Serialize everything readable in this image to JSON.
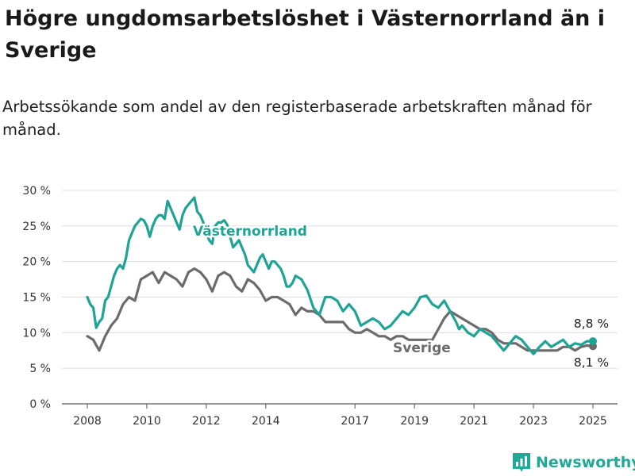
{
  "header": {
    "title": "Högre ungdomsarbetslöshet i Västernorrland än i Sverige",
    "subtitle": "Arbetssökande som andel av den registerbaserade arbetskraften månad för månad."
  },
  "brand": {
    "name": "Newsworthy",
    "icon": "newsworthy-logo-icon"
  },
  "chart_data": {
    "type": "line",
    "y_ticks": [
      "0 %",
      "5 %",
      "10 %",
      "15 %",
      "20 %",
      "25 %",
      "30 %"
    ],
    "x_ticks": [
      "2008",
      "2010",
      "2012",
      "2014",
      "2017",
      "2019",
      "2021",
      "2023",
      "2025"
    ],
    "ylim": [
      0,
      30
    ],
    "grid": true,
    "legend": "inline labels",
    "series": [
      {
        "name": "Västernorrland",
        "color": "#1fa395",
        "end_label": "8,8 %",
        "x": [
          2008.0,
          2008.1,
          2008.2,
          2008.3,
          2008.4,
          2008.5,
          2008.6,
          2008.7,
          2008.8,
          2008.9,
          2009.0,
          2009.1,
          2009.2,
          2009.3,
          2009.4,
          2009.5,
          2009.6,
          2009.7,
          2009.8,
          2009.9,
          2010.0,
          2010.1,
          2010.2,
          2010.3,
          2010.4,
          2010.5,
          2010.6,
          2010.7,
          2010.8,
          2010.9,
          2011.0,
          2011.1,
          2011.2,
          2011.3,
          2011.4,
          2011.5,
          2011.6,
          2011.7,
          2011.8,
          2011.9,
          2012.0,
          2012.1,
          2012.2,
          2012.3,
          2012.4,
          2012.5,
          2012.6,
          2012.7,
          2012.8,
          2012.9,
          2013.0,
          2013.1,
          2013.2,
          2013.3,
          2013.4,
          2013.5,
          2013.6,
          2013.7,
          2013.8,
          2013.9,
          2014.0,
          2014.1,
          2014.2,
          2014.3,
          2014.4,
          2014.5,
          2014.6,
          2014.7,
          2014.8,
          2014.9,
          2015.0,
          2015.2,
          2015.4,
          2015.6,
          2015.8,
          2016.0,
          2016.2,
          2016.4,
          2016.6,
          2016.8,
          2017.0,
          2017.2,
          2017.4,
          2017.6,
          2017.8,
          2018.0,
          2018.2,
          2018.4,
          2018.6,
          2018.8,
          2019.0,
          2019.2,
          2019.4,
          2019.6,
          2019.8,
          2020.0,
          2020.2,
          2020.4,
          2020.5,
          2020.6,
          2020.8,
          2021.0,
          2021.2,
          2021.4,
          2021.6,
          2021.8,
          2022.0,
          2022.2,
          2022.4,
          2022.6,
          2022.8,
          2023.0,
          2023.2,
          2023.4,
          2023.6,
          2023.8,
          2024.0,
          2024.2,
          2024.4,
          2024.6,
          2024.8,
          2025.0
        ],
        "values": [
          15.0,
          14.0,
          13.5,
          10.7,
          11.5,
          12.0,
          14.5,
          15.0,
          16.5,
          18.0,
          19.0,
          19.5,
          19.0,
          20.5,
          23.0,
          24.0,
          25.0,
          25.5,
          26.0,
          25.8,
          25.0,
          23.5,
          25.0,
          26.0,
          26.5,
          26.5,
          26.0,
          28.5,
          27.5,
          26.5,
          25.5,
          24.5,
          26.5,
          27.5,
          28.0,
          28.5,
          29.0,
          27.0,
          26.5,
          25.5,
          24.0,
          23.0,
          22.5,
          25.0,
          25.5,
          25.5,
          25.8,
          25.2,
          23.5,
          22.0,
          22.5,
          23.0,
          22.0,
          21.0,
          19.5,
          19.0,
          18.5,
          19.5,
          20.5,
          21.0,
          20.0,
          19.0,
          20.0,
          20.0,
          19.5,
          19.0,
          18.0,
          16.5,
          16.5,
          17.0,
          18.0,
          17.5,
          16.0,
          13.5,
          12.5,
          15.0,
          15.0,
          14.5,
          13.0,
          14.0,
          13.0,
          11.0,
          11.5,
          12.0,
          11.5,
          10.5,
          11.0,
          12.0,
          13.0,
          12.5,
          13.5,
          15.0,
          15.2,
          14.0,
          13.5,
          14.5,
          13.0,
          11.5,
          10.5,
          11.0,
          10.0,
          9.5,
          10.5,
          10.0,
          9.5,
          8.5,
          7.5,
          8.5,
          9.5,
          9.0,
          8.0,
          7.0,
          8.0,
          8.8,
          8.0,
          8.5,
          9.0,
          8.0,
          8.5,
          8.3,
          8.8,
          8.8
        ],
        "visible_labels": true
      },
      {
        "name": "Sverige",
        "color": "#6b6b6b",
        "end_label": "8,1 %",
        "x": [
          2008.0,
          2008.2,
          2008.4,
          2008.6,
          2008.8,
          2009.0,
          2009.2,
          2009.4,
          2009.6,
          2009.8,
          2010.0,
          2010.2,
          2010.4,
          2010.6,
          2010.8,
          2011.0,
          2011.2,
          2011.4,
          2011.6,
          2011.8,
          2012.0,
          2012.2,
          2012.4,
          2012.6,
          2012.8,
          2013.0,
          2013.2,
          2013.4,
          2013.6,
          2013.8,
          2014.0,
          2014.2,
          2014.4,
          2014.6,
          2014.8,
          2015.0,
          2015.2,
          2015.4,
          2015.6,
          2015.8,
          2016.0,
          2016.2,
          2016.4,
          2016.6,
          2016.8,
          2017.0,
          2017.2,
          2017.4,
          2017.6,
          2017.8,
          2018.0,
          2018.2,
          2018.4,
          2018.6,
          2018.8,
          2019.0,
          2019.2,
          2019.4,
          2019.6,
          2019.8,
          2020.0,
          2020.2,
          2020.4,
          2020.6,
          2020.8,
          2021.0,
          2021.2,
          2021.4,
          2021.6,
          2021.8,
          2022.0,
          2022.2,
          2022.4,
          2022.6,
          2022.8,
          2023.0,
          2023.2,
          2023.4,
          2023.6,
          2023.8,
          2024.0,
          2024.2,
          2024.4,
          2024.6,
          2024.8,
          2025.0
        ],
        "values": [
          9.5,
          9.0,
          7.5,
          9.5,
          11.0,
          12.0,
          14.0,
          15.0,
          14.5,
          17.5,
          18.0,
          18.5,
          17.0,
          18.5,
          18.0,
          17.5,
          16.5,
          18.5,
          19.0,
          18.5,
          17.5,
          15.8,
          18.0,
          18.5,
          18.0,
          16.5,
          15.8,
          17.5,
          17.0,
          16.0,
          14.5,
          15.0,
          15.0,
          14.5,
          14.0,
          12.5,
          13.5,
          13.0,
          13.0,
          12.5,
          11.5,
          11.5,
          11.5,
          11.5,
          10.5,
          10.0,
          10.0,
          10.5,
          10.0,
          9.5,
          9.5,
          9.0,
          9.5,
          9.5,
          9.0,
          9.0,
          9.0,
          9.0,
          9.0,
          10.5,
          12.0,
          13.0,
          12.5,
          12.0,
          11.5,
          11.0,
          10.5,
          10.5,
          10.0,
          9.0,
          8.5,
          8.5,
          8.5,
          8.0,
          7.5,
          7.5,
          7.5,
          7.5,
          7.5,
          7.5,
          8.0,
          8.0,
          7.5,
          8.0,
          8.2,
          8.1
        ],
        "visible_labels": true
      }
    ]
  }
}
